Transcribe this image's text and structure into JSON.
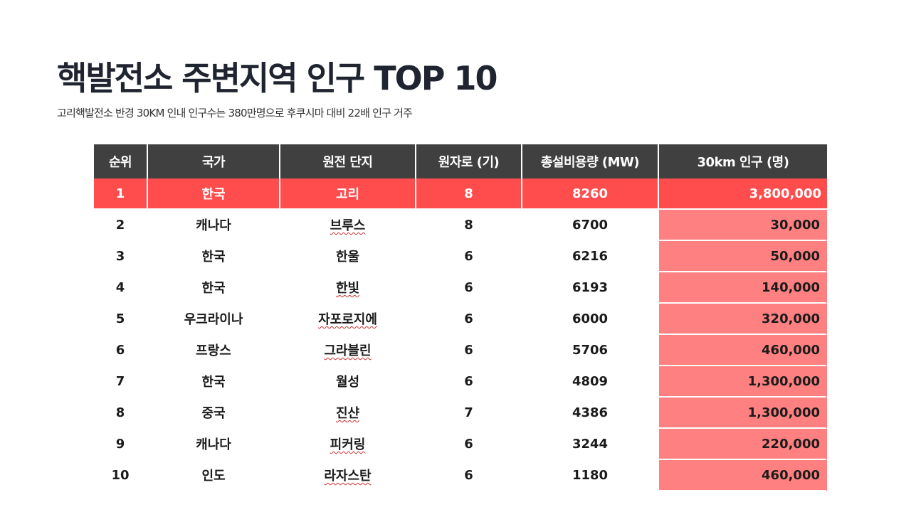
{
  "title": "핵발전소 주변지역 인구 TOP 10",
  "subtitle": "고리핵발전소 반경 30KM 인내 인구수는 380만명으로 후쿠시마 대비 22배 인구 거주",
  "table": {
    "headers": [
      "순위",
      "국가",
      "원전 단지",
      "원자로 (기)",
      "총설비용량 (MW)",
      "30km 인구 (명)"
    ],
    "rows": [
      {
        "rank": "1",
        "country": "한국",
        "site": "고리",
        "reactors": "8",
        "capacity": "8260",
        "population": "3,800,000"
      },
      {
        "rank": "2",
        "country": "캐나다",
        "site": "브루스",
        "reactors": "8",
        "capacity": "6700",
        "population": "30,000"
      },
      {
        "rank": "3",
        "country": "한국",
        "site": "한울",
        "reactors": "6",
        "capacity": "6216",
        "population": "50,000"
      },
      {
        "rank": "4",
        "country": "한국",
        "site": "한빛",
        "reactors": "6",
        "capacity": "6193",
        "population": "140,000"
      },
      {
        "rank": "5",
        "country": "우크라이나",
        "site": "자포로지에",
        "reactors": "6",
        "capacity": "6000",
        "population": "320,000"
      },
      {
        "rank": "6",
        "country": "프랑스",
        "site": "그라블린",
        "reactors": "6",
        "capacity": "5706",
        "population": "460,000"
      },
      {
        "rank": "7",
        "country": "한국",
        "site": "월성",
        "reactors": "6",
        "capacity": "4809",
        "population": "1,300,000"
      },
      {
        "rank": "8",
        "country": "중국",
        "site": "진샨",
        "reactors": "7",
        "capacity": "4386",
        "population": "1,300,000"
      },
      {
        "rank": "9",
        "country": "캐나다",
        "site": "피커링",
        "reactors": "6",
        "capacity": "3244",
        "population": "220,000"
      },
      {
        "rank": "10",
        "country": "인도",
        "site": "라자스탄",
        "reactors": "6",
        "capacity": "1180",
        "population": "460,000"
      }
    ]
  },
  "colors": {
    "header_bg": "#404040",
    "highlight_row": "#ff4d4d",
    "population_cell": "#ff8080"
  }
}
